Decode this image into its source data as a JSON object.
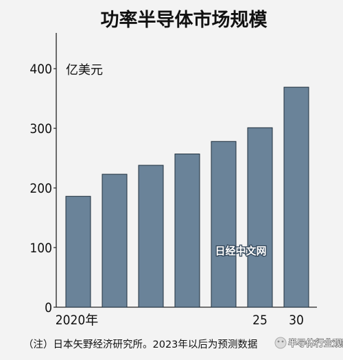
{
  "chart_data": {
    "type": "bar",
    "title": "功率半导体市场规模",
    "unit_label": "亿美元",
    "xlabel": "",
    "ylabel": "亿美元",
    "categories": [
      "2020年",
      "",
      "",
      "",
      "",
      "25",
      "30"
    ],
    "values": [
      186,
      223,
      238,
      257,
      278,
      301,
      369
    ],
    "ylim": [
      0,
      460
    ],
    "yticks": [
      "0",
      "100",
      "200",
      "300",
      "400"
    ],
    "ytick_values": [
      0,
      100,
      200,
      300,
      400
    ],
    "grid": false,
    "bar_color": "#6a8399",
    "watermark": "日经中文网",
    "source_note": "（注）日本矢野经济研究所。2023年以后为预测数据",
    "overlay_badge": "半导体行业观察"
  }
}
